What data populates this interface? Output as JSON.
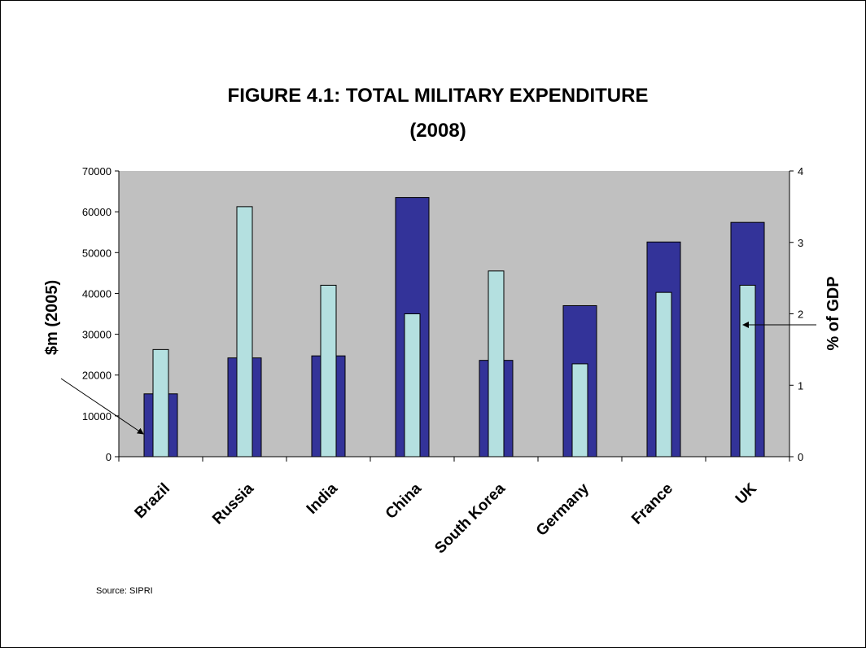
{
  "chart_data": {
    "type": "bar",
    "title": "FIGURE 4.1:  TOTAL MILITARY EXPENDITURE",
    "subtitle": "(2008)",
    "categories": [
      "Brazil",
      "Russia",
      "India",
      "China",
      "South Korea",
      "Germany",
      "France",
      "UK"
    ],
    "series": [
      {
        "name": "",
        "axis": "left",
        "color": "#333399",
        "values": [
          15400,
          24200,
          24700,
          63500,
          23600,
          37000,
          52600,
          57400
        ]
      },
      {
        "name": "",
        "axis": "right",
        "color": "#b4e0e0",
        "values": [
          1.5,
          3.5,
          2.4,
          2.0,
          2.6,
          1.3,
          2.3,
          2.4
        ]
      }
    ],
    "ylabel": "$m (2005)",
    "ylim": [
      0,
      70000
    ],
    "yticks": [
      "0",
      "10000",
      "20000",
      "30000",
      "40000",
      "50000",
      "60000",
      "70000"
    ],
    "y2label": "% of GDP",
    "y2lim": [
      0,
      4
    ],
    "y2ticks": [
      "0",
      "1",
      "2",
      "3",
      "4"
    ],
    "plot_background": "#c0c0c0",
    "grid": false,
    "legend": "none",
    "annotations": [
      "arrow from left axis title to Brazil bar",
      "arrow from right axis title to UK bar"
    ],
    "source": "Source: SIPRI"
  }
}
